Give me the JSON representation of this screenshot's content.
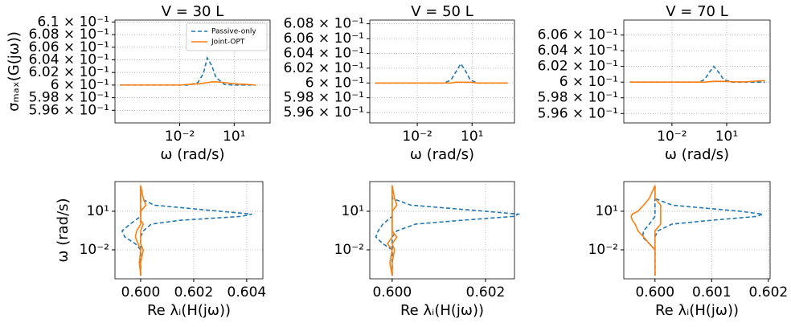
{
  "chart_data": [
    {
      "type": "line",
      "title": "V = 30 L",
      "xlabel": "ω (rad/s)",
      "ylabel": "σₘₐₓ(G(jω))",
      "log_x": true,
      "grid": true,
      "legend": "upper right",
      "xlim": [
        2.7e-06,
        955
      ],
      "ylim": [
        0.594,
        0.6103
      ],
      "xticks": [
        {
          "value": 0.01,
          "label": "10⁻²"
        },
        {
          "value": 10,
          "label": "10¹"
        }
      ],
      "yticks": [
        {
          "value": 0.596,
          "label": "5.96 × 10⁻¹"
        },
        {
          "value": 0.598,
          "label": "5.98 × 10⁻¹"
        },
        {
          "value": 0.6,
          "label": "6 × 10⁻¹"
        },
        {
          "value": 0.602,
          "label": "6.02 × 10⁻¹"
        },
        {
          "value": 0.604,
          "label": "6.04 × 10⁻¹"
        },
        {
          "value": 0.606,
          "label": "6.06 × 10⁻¹"
        },
        {
          "value": 0.608,
          "label": "6.08 × 10⁻¹"
        },
        {
          "value": 0.61,
          "label": "6.1 × 10⁻¹"
        }
      ],
      "x": [
        5e-06,
        0.0001,
        0.001,
        0.01,
        0.03,
        0.1,
        0.2,
        0.33,
        0.6,
        1,
        3,
        10,
        50,
        160
      ],
      "series": [
        {
          "name": "Passive-only",
          "color": "#1f77b4",
          "linestyle": "dashed",
          "values": [
            0.6,
            0.6,
            0.6,
            0.6,
            0.6,
            0.6004,
            0.6018,
            0.6043,
            0.603,
            0.6012,
            0.6001,
            0.6,
            0.6,
            0.6
          ]
        },
        {
          "name": "Joint-OPT",
          "color": "#ff7f0e",
          "linestyle": "solid",
          "values": [
            0.6,
            0.6,
            0.6,
            0.6,
            0.6001,
            0.6002,
            0.6003,
            0.6004,
            0.6005,
            0.6005,
            0.6004,
            0.6002,
            0.6001,
            0.6
          ]
        }
      ]
    },
    {
      "type": "line",
      "title": "V = 50 L",
      "xlabel": "ω (rad/s)",
      "log_x": true,
      "grid": true,
      "xlim": [
        2.5e-05,
        2100
      ],
      "ylim": [
        0.5946,
        0.6085
      ],
      "xticks": [
        {
          "value": 0.01,
          "label": "10⁻²"
        },
        {
          "value": 10,
          "label": "10¹"
        }
      ],
      "yticks": [
        {
          "value": 0.596,
          "label": "5.96 × 10⁻¹"
        },
        {
          "value": 0.598,
          "label": "5.98 × 10⁻¹"
        },
        {
          "value": 0.6,
          "label": "6 × 10⁻¹"
        },
        {
          "value": 0.602,
          "label": "6.02 × 10⁻¹"
        },
        {
          "value": 0.604,
          "label": "6.04 × 10⁻¹"
        },
        {
          "value": 0.606,
          "label": "6.06 × 10⁻¹"
        },
        {
          "value": 0.608,
          "label": "6.08 × 10⁻¹"
        }
      ],
      "x": [
        5e-05,
        0.001,
        0.01,
        0.1,
        0.3,
        0.7,
        1.3,
        2.4,
        4,
        8,
        20,
        100,
        900
      ],
      "series": [
        {
          "color": "#1f77b4",
          "linestyle": "dashed",
          "values": [
            0.6,
            0.6,
            0.6,
            0.6,
            0.6,
            0.6004,
            0.6015,
            0.6026,
            0.6018,
            0.6004,
            0.6,
            0.6,
            0.6
          ]
        },
        {
          "color": "#ff7f0e",
          "linestyle": "solid",
          "values": [
            0.6,
            0.6,
            0.6,
            0.6,
            0.6,
            0.6,
            0.6001,
            0.6001,
            0.6001,
            0.6001,
            0.6,
            0.6,
            0.6
          ]
        }
      ]
    },
    {
      "type": "line",
      "title": "V = 70 L",
      "xlabel": "ω (rad/s)",
      "log_x": true,
      "grid": true,
      "xlim": [
        2.3e-05,
        2400
      ],
      "ylim": [
        0.5948,
        0.6079
      ],
      "xticks": [
        {
          "value": 0.01,
          "label": "10⁻²"
        },
        {
          "value": 10,
          "label": "10¹"
        }
      ],
      "yticks": [
        {
          "value": 0.596,
          "label": "5.96 × 10⁻¹"
        },
        {
          "value": 0.598,
          "label": "5.98 × 10⁻¹"
        },
        {
          "value": 0.6,
          "label": "6 × 10⁻¹"
        },
        {
          "value": 0.602,
          "label": "6.02 × 10⁻¹"
        },
        {
          "value": 0.604,
          "label": "6.04 × 10⁻¹"
        },
        {
          "value": 0.606,
          "label": "6.06 × 10⁻¹"
        }
      ],
      "x": [
        5e-05,
        0.001,
        0.01,
        0.1,
        0.3,
        0.6,
        1.1,
        1.95,
        3.5,
        7,
        20,
        100,
        1250
      ],
      "series": [
        {
          "color": "#1f77b4",
          "linestyle": "dashed",
          "values": [
            0.6,
            0.6,
            0.6,
            0.6,
            0.6,
            0.6003,
            0.6012,
            0.602,
            0.6013,
            0.6003,
            0.6,
            0.6,
            0.6
          ]
        },
        {
          "color": "#ff7f0e",
          "linestyle": "solid",
          "values": [
            0.6,
            0.6,
            0.6,
            0.6,
            0.6,
            0.6,
            0.60005,
            0.6001,
            0.6001,
            0.6001,
            0.60005,
            0.60003,
            0.6002
          ]
        }
      ]
    },
    {
      "type": "line",
      "xlabel": "Re λᵢ(H(jω))",
      "ylabel": "ω (rad/s)",
      "log_y": true,
      "grid": true,
      "xlim": [
        0.59903,
        0.60461
      ],
      "ylim": [
        5.6e-05,
        2040
      ],
      "xticks": [
        {
          "value": 0.6,
          "label": "0.600"
        },
        {
          "value": 0.602,
          "label": "0.602"
        },
        {
          "value": 0.604,
          "label": "0.604"
        }
      ],
      "yticks": [
        {
          "value": 0.01,
          "label": "10⁻²"
        },
        {
          "value": 10,
          "label": "10¹"
        }
      ],
      "y": [
        0.0001,
        0.001,
        0.01,
        0.03,
        0.1,
        0.3,
        1,
        2,
        4,
        6,
        10,
        30,
        100,
        1000
      ],
      "series": [
        {
          "color": "#1f77b4",
          "linestyle": "dashed",
          "values": [
            0.6,
            0.6,
            0.6,
            0.6,
            0.6,
            0.6001,
            0.6004,
            0.6015,
            0.6038,
            0.6042,
            0.603,
            0.6005,
            0.6,
            0.6
          ]
        },
        {
          "color": "#1f77b4",
          "linestyle": "dashed",
          "values": [
            0.6,
            0.6,
            0.6,
            0.5998,
            0.5994,
            0.5993,
            0.5996,
            0.5998,
            0.6,
            0.6,
            0.6,
            0.6,
            0.6,
            0.6
          ]
        },
        {
          "color": "#ff7f0e",
          "linestyle": "solid",
          "values": [
            0.6,
            0.59995,
            0.6,
            0.5999,
            0.5998,
            0.59985,
            0.6,
            0.6,
            0.6,
            0.6,
            0.6,
            0.6,
            0.6,
            0.6
          ]
        },
        {
          "color": "#ff7f0e",
          "linestyle": "solid",
          "values": [
            0.6,
            0.6,
            0.6001,
            0.6,
            0.6,
            0.6,
            0.6001,
            0.6,
            0.6,
            0.6,
            0.6,
            0.6002,
            0.6001,
            0.6
          ]
        }
      ]
    },
    {
      "type": "line",
      "xlabel": "Re λᵢ(H(jω))",
      "log_y": true,
      "grid": true,
      "xlim": [
        0.59952,
        0.60262
      ],
      "ylim": [
        5.6e-05,
        2040
      ],
      "xticks": [
        {
          "value": 0.6,
          "label": "0.600"
        },
        {
          "value": 0.602,
          "label": "0.602"
        }
      ],
      "yticks": [
        {
          "value": 0.01,
          "label": "10⁻²"
        },
        {
          "value": 10,
          "label": "10¹"
        }
      ],
      "y": [
        0.0001,
        0.001,
        0.01,
        0.03,
        0.1,
        0.3,
        1,
        2,
        4,
        6,
        10,
        30,
        100,
        1000
      ],
      "series": [
        {
          "color": "#1f77b4",
          "linestyle": "dashed",
          "values": [
            0.6,
            0.6,
            0.6,
            0.6,
            0.6,
            0.6001,
            0.6005,
            0.6015,
            0.6026,
            0.6027,
            0.602,
            0.6004,
            0.6,
            0.6
          ]
        },
        {
          "color": "#1f77b4",
          "linestyle": "dashed",
          "values": [
            0.6,
            0.6,
            0.6,
            0.5998,
            0.59965,
            0.5997,
            0.5998,
            0.5999,
            0.6,
            0.6,
            0.6,
            0.6,
            0.6,
            0.6
          ]
        },
        {
          "color": "#ff7f0e",
          "linestyle": "solid",
          "values": [
            0.6,
            0.59995,
            0.6,
            0.5999,
            0.6,
            0.6,
            0.6,
            0.6,
            0.6,
            0.6,
            0.6,
            0.6,
            0.6,
            0.6
          ]
        },
        {
          "color": "#ff7f0e",
          "linestyle": "solid",
          "values": [
            0.6,
            0.6,
            0.60005,
            0.6,
            0.6001,
            0.6,
            0.6,
            0.6,
            0.6,
            0.6,
            0.6,
            0.6001,
            0.60005,
            0.6
          ]
        }
      ]
    },
    {
      "type": "line",
      "xlabel": "Re λᵢ(H(jω))",
      "log_y": true,
      "grid": true,
      "xlim": [
        0.59945,
        0.60203
      ],
      "ylim": [
        5.6e-05,
        2040
      ],
      "xticks": [
        {
          "value": 0.6,
          "label": "0.600"
        },
        {
          "value": 0.601,
          "label": "0.601"
        },
        {
          "value": 0.602,
          "label": "0.602"
        }
      ],
      "yticks": [
        {
          "value": 0.01,
          "label": "10⁻²"
        },
        {
          "value": 10,
          "label": "10¹"
        }
      ],
      "y": [
        0.0001,
        0.001,
        0.01,
        0.03,
        0.1,
        0.3,
        1,
        2,
        4,
        6,
        10,
        30,
        100,
        1000
      ],
      "series": [
        {
          "color": "#1f77b4",
          "linestyle": "dashed",
          "values": [
            0.6,
            0.6,
            0.6,
            0.6,
            0.6,
            0.60005,
            0.6003,
            0.601,
            0.6018,
            0.6019,
            0.6015,
            0.6003,
            0.6,
            0.6
          ]
        },
        {
          "color": "#1f77b4",
          "linestyle": "dashed",
          "values": [
            0.6,
            0.6,
            0.6,
            0.5999,
            0.59978,
            0.5998,
            0.5999,
            0.59995,
            0.6,
            0.6,
            0.6,
            0.6,
            0.6,
            0.6
          ]
        },
        {
          "color": "#ff7f0e",
          "linestyle": "solid",
          "values": [
            0.6,
            0.6,
            0.6,
            0.5999,
            0.5998,
            0.5997,
            0.59965,
            0.5996,
            0.59958,
            0.5996,
            0.5997,
            0.5998,
            0.5999,
            0.6
          ]
        },
        {
          "color": "#ff7f0e",
          "linestyle": "solid",
          "values": [
            0.6,
            0.6,
            0.6,
            0.6,
            0.6,
            0.6,
            0.6001,
            0.6001,
            0.6001,
            0.6001,
            0.6001,
            0.6001,
            0.6,
            0.6
          ]
        }
      ]
    }
  ]
}
